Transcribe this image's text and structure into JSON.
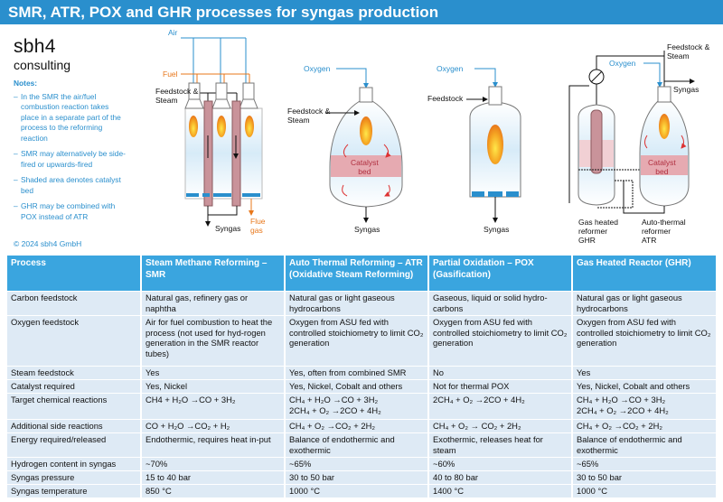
{
  "header": {
    "title": "SMR, ATR, POX and GHR processes for syngas production"
  },
  "logo": {
    "name": "sbh4",
    "sub": "consulting"
  },
  "notes": {
    "title": "Notes:",
    "items": [
      "In the SMR the air/fuel combustion reaction takes place in a separate part of the process to the reforming reaction",
      "SMR may alternatively be side-fired or upwards-fired",
      "Shaded area denotes catalyst bed",
      "GHR may be combined with POX instead of ATR"
    ]
  },
  "copyright": "© 2024 sbh4 GmbH",
  "diagrams": {
    "smr": {
      "air": "Air",
      "fuel": "Fuel",
      "feed": "Feedstock &\nSteam",
      "syngas": "Syngas",
      "flue": "Flue\ngas"
    },
    "atr": {
      "oxygen": "Oxygen",
      "feed": "Feedstock &\nSteam",
      "catalyst": "Catalyst\nbed",
      "syngas": "Syngas"
    },
    "pox": {
      "oxygen": "Oxygen",
      "feed": "Feedstock",
      "syngas": "Syngas"
    },
    "ghr": {
      "oxygen": "Oxygen",
      "feed": "Feedstock &\nSteam",
      "syngas": "Syngas",
      "catalyst": "Catalyst\nbed",
      "ghr_label": "Gas heated\nreformer\nGHR",
      "atr_label": "Auto-thermal\nreformer\nATR"
    }
  },
  "table": {
    "header": [
      "Process",
      "Steam Methane Reforming – SMR",
      "Auto Thermal Reforming – ATR (Oxidative Steam Reforming)",
      "Partial Oxidation – POX (Gasification)",
      "Gas Heated Reactor (GHR)"
    ],
    "rows": [
      [
        "Carbon feedstock",
        "Natural gas, refinery gas or naphtha",
        "Natural gas or light gaseous hydrocarbons",
        "Gaseous, liquid or solid hydro-carbons",
        "Natural gas or light gaseous hydrocarbons"
      ],
      [
        "Oxygen feedstock",
        "Air for fuel combustion to heat the process (not used for hyd-rogen generation in the SMR reactor tubes)",
        "Oxygen from ASU fed with controlled stoichiometry to limit CO₂ generation",
        "Oxygen from ASU fed with controlled stoichiometry to limit CO₂ generation",
        "Oxygen from ASU fed with controlled stoichiometry to limit CO₂ generation"
      ],
      [
        "Steam feedstock",
        "Yes",
        "Yes, often from combined SMR",
        "No",
        "Yes"
      ],
      [
        "Catalyst required",
        "Yes, Nickel",
        "Yes, Nickel, Cobalt and others",
        "Not for thermal POX",
        "Yes, Nickel, Cobalt and others"
      ],
      [
        "Target chemical reactions",
        "CH4 + H₂O →CO + 3H₂",
        "CH₄ + H₂O →CO + 3H₂\n2CH₄ + O₂ →2CO + 4H₂",
        "2CH₄ + O₂ →2CO + 4H₂",
        "CH₄ + H₂O →CO + 3H₂\n2CH₄ + O₂ →2CO + 4H₂"
      ],
      [
        "Additional side reactions",
        "CO + H₂O →CO₂ + H₂",
        "CH₄ + O₂ →CO₂ + 2H₂",
        "CH₄ + O₂ → CO₂ + 2H₂",
        "CH₄ + O₂ →CO₂ + 2H₂"
      ],
      [
        "Energy required/released",
        "Endothermic, requires heat in-put",
        "Balance of endothermic and exothermic",
        "Exothermic, releases heat for steam",
        "Balance of endothermic and exothermic"
      ],
      [
        "Hydrogen content in syngas",
        "~70%",
        "~65%",
        "~60%",
        "~65%"
      ],
      [
        "Syngas pressure",
        "15 to 40 bar",
        "30 to 50 bar",
        "40 to 80 bar",
        "30 to 50 bar"
      ],
      [
        "Syngas temperature",
        "850 °C",
        "1000 °C",
        "1400 °C",
        "1000 °C"
      ]
    ]
  }
}
